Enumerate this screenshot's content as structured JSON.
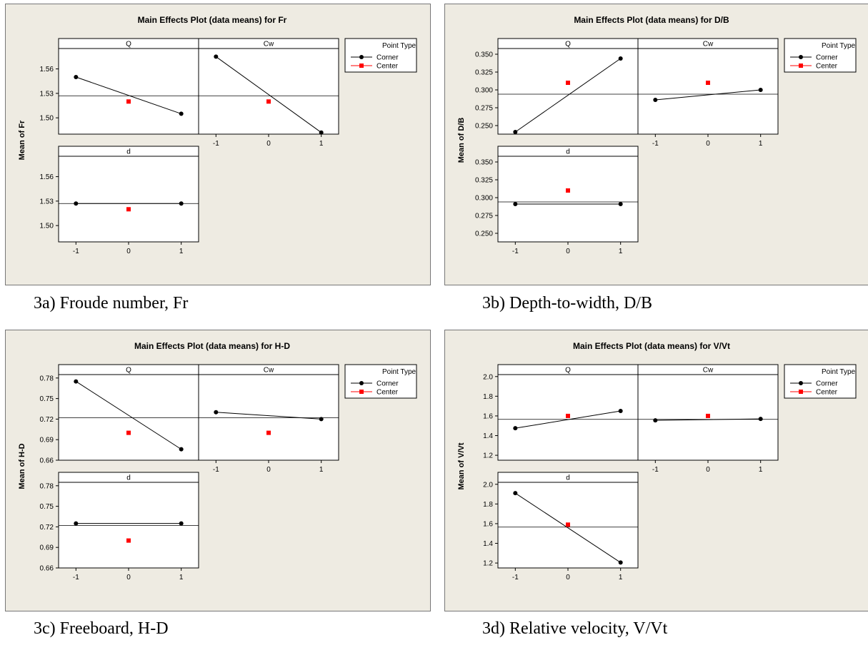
{
  "colors": {
    "background": "#eeebe2",
    "corner": "#000000",
    "center": "#ff0000",
    "line": "#000000"
  },
  "legend": {
    "title": "Point Type",
    "corner": "Corner",
    "center": "Center"
  },
  "captions": {
    "a": "3a) Froude number, Fr",
    "b": "3b) Depth-to-width, D/B",
    "c": "3c)  Freeboard, H-D",
    "d": "3d)  Relative velocity, V/Vt"
  },
  "chart_data": [
    {
      "type": "line",
      "title": "Main Effects Plot (data means) for Fr",
      "ylabel": "Mean of Fr",
      "ylim": [
        1.48,
        1.585
      ],
      "yticks": [
        "1.50",
        "1.53",
        "1.56"
      ],
      "xticks": [
        "-1",
        "0",
        "1"
      ],
      "grand_mean": 1.527,
      "grid": false,
      "legend_position": "top-right",
      "panels": [
        {
          "name": "Q",
          "corner": [
            1.55,
            1.505
          ],
          "center": 1.52
        },
        {
          "name": "Cw",
          "corner": [
            1.575,
            1.482
          ],
          "center": 1.52
        },
        {
          "name": "d",
          "corner": [
            1.527,
            1.527
          ],
          "center": 1.52
        }
      ]
    },
    {
      "type": "line",
      "title": "Main Effects Plot (data means) for D/B",
      "ylabel": "Mean of D/B",
      "ylim": [
        0.238,
        0.358
      ],
      "yticks": [
        "0.250",
        "0.275",
        "0.300",
        "0.325",
        "0.350"
      ],
      "xticks": [
        "-1",
        "0",
        "1"
      ],
      "grand_mean": 0.294,
      "grid": false,
      "legend_position": "top-right",
      "panels": [
        {
          "name": "Q",
          "corner": [
            0.241,
            0.344
          ],
          "center": 0.31
        },
        {
          "name": "Cw",
          "corner": [
            0.286,
            0.3
          ],
          "center": 0.31
        },
        {
          "name": "d",
          "corner": [
            0.291,
            0.291
          ],
          "center": 0.31
        }
      ]
    },
    {
      "type": "line",
      "title": "Main Effects Plot (data means) for H-D",
      "ylabel": "Mean of H-D",
      "ylim": [
        0.66,
        0.785
      ],
      "yticks": [
        "0.66",
        "0.69",
        "0.72",
        "0.75",
        "0.78"
      ],
      "xticks": [
        "-1",
        "0",
        "1"
      ],
      "grand_mean": 0.722,
      "grid": false,
      "legend_position": "top-right",
      "panels": [
        {
          "name": "Q",
          "corner": [
            0.775,
            0.676
          ],
          "center": 0.7
        },
        {
          "name": "Cw",
          "corner": [
            0.73,
            0.72
          ],
          "center": 0.7
        },
        {
          "name": "d",
          "corner": [
            0.725,
            0.725
          ],
          "center": 0.7
        }
      ]
    },
    {
      "type": "line",
      "title": "Main Effects Plot (data means) for V/Vt",
      "ylabel": "Mean of V/Vt",
      "ylim": [
        1.15,
        2.02
      ],
      "yticks": [
        "1.2",
        "1.4",
        "1.6",
        "1.8",
        "2.0"
      ],
      "xticks": [
        "-1",
        "0",
        "1"
      ],
      "grand_mean": 1.565,
      "grid": false,
      "legend_position": "top-right",
      "panels": [
        {
          "name": "Q",
          "corner": [
            1.475,
            1.65
          ],
          "center": 1.6
        },
        {
          "name": "Cw",
          "corner": [
            1.555,
            1.57
          ],
          "center": 1.6
        },
        {
          "name": "d",
          "corner": [
            1.91,
            1.205
          ],
          "center": 1.59
        }
      ]
    }
  ]
}
